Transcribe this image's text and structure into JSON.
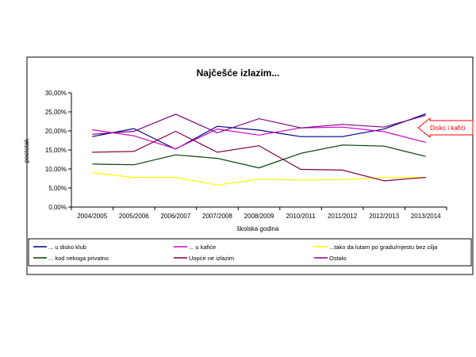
{
  "chart_data": {
    "type": "line",
    "title": "Najčešće izlazim...",
    "xlabel": "školska godina",
    "ylabel": "postotak",
    "categories": [
      "2004/2005",
      "2005/2006",
      "2006/2007",
      "2007/2008",
      "2008/2009",
      "2010/2011",
      "2011/2012",
      "2012/2013",
      "2013/2014"
    ],
    "yticks": [
      "0,00%",
      "5,00%",
      "10,00%",
      "15,00%",
      "20,00%",
      "25,00%",
      "30,00%"
    ],
    "ylim": [
      0,
      30
    ],
    "grid": false,
    "legend_position": "bottom",
    "series": [
      {
        "name": "... u disko klub",
        "color": "#000080",
        "values": [
          18.5,
          20.6,
          15.2,
          21.2,
          20.2,
          18.5,
          18.5,
          20.5,
          24.5
        ]
      },
      {
        "name": "... u kafiće",
        "color": "#cc00cc",
        "values": [
          20.3,
          18.7,
          15.3,
          20.5,
          18.9,
          20.8,
          21.0,
          19.8,
          17.0
        ]
      },
      {
        "name": "...tako da lutam po gradu/mjestu bez cilja",
        "color": "#ffff00",
        "values": [
          9.0,
          7.8,
          7.8,
          5.8,
          7.3,
          7.1,
          7.2,
          7.8,
          7.8
        ]
      },
      {
        "name": "... kod nekoga privatno",
        "color": "#004000",
        "values": [
          11.3,
          11.1,
          13.7,
          12.8,
          10.3,
          14.1,
          16.3,
          16.0,
          13.3
        ]
      },
      {
        "name": "Uopće ne izlazim",
        "color": "#800040",
        "values": [
          14.4,
          14.6,
          19.9,
          14.4,
          16.1,
          9.9,
          9.7,
          6.9,
          7.8
        ]
      },
      {
        "name": "Ostalo",
        "color": "#800080",
        "values": [
          19.1,
          19.9,
          24.4,
          19.5,
          23.2,
          20.8,
          21.7,
          21.0,
          24.1
        ]
      }
    ],
    "annotation": {
      "text": "Disko i kafići",
      "color": "#ff0000"
    }
  }
}
